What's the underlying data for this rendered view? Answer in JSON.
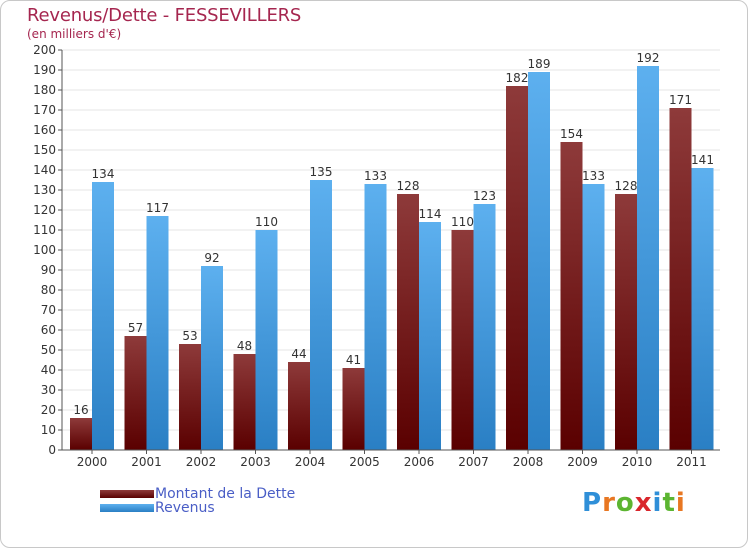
{
  "header": {
    "title": "Revenus/Dette - FESSEVILLERS",
    "subtitle": "(en milliers d'€)"
  },
  "colors": {
    "title": "#a5264f",
    "debt_dark": "#5a0000",
    "debt_light": "#8e3a3a",
    "rev_dark": "#2a7fc4",
    "rev_light": "#5db0ef",
    "grid": "#e6e6e6",
    "axis_text": "#333333",
    "legend_text": "#4a5ec6"
  },
  "chart_data": {
    "type": "bar",
    "title": "Revenus/Dette - FESSEVILLERS",
    "subtitle": "(en milliers d'€)",
    "xlabel": "",
    "ylabel": "",
    "ylim": [
      0,
      200
    ],
    "ytick_step": 10,
    "grid": true,
    "categories": [
      "2000",
      "2001",
      "2002",
      "2003",
      "2004",
      "2005",
      "2006",
      "2007",
      "2008",
      "2009",
      "2010",
      "2011"
    ],
    "series": [
      {
        "name": "Montant de la Dette",
        "values": [
          16,
          57,
          53,
          48,
          44,
          41,
          128,
          110,
          182,
          154,
          128,
          171
        ]
      },
      {
        "name": "Revenus",
        "values": [
          134,
          117,
          92,
          110,
          135,
          133,
          114,
          123,
          189,
          133,
          192,
          141
        ]
      }
    ]
  },
  "legend": {
    "items": [
      {
        "label": "Montant de la Dette"
      },
      {
        "label": "Revenus"
      }
    ]
  },
  "logo": {
    "text": "Proxiti",
    "letters": [
      "P",
      "r",
      "o",
      "x",
      "i",
      "t",
      "i"
    ],
    "letter_colors": [
      "#2f8fd8",
      "#e87722",
      "#5cb531",
      "#d9262c",
      "#2f8fd8",
      "#5cb531",
      "#e87722"
    ]
  }
}
